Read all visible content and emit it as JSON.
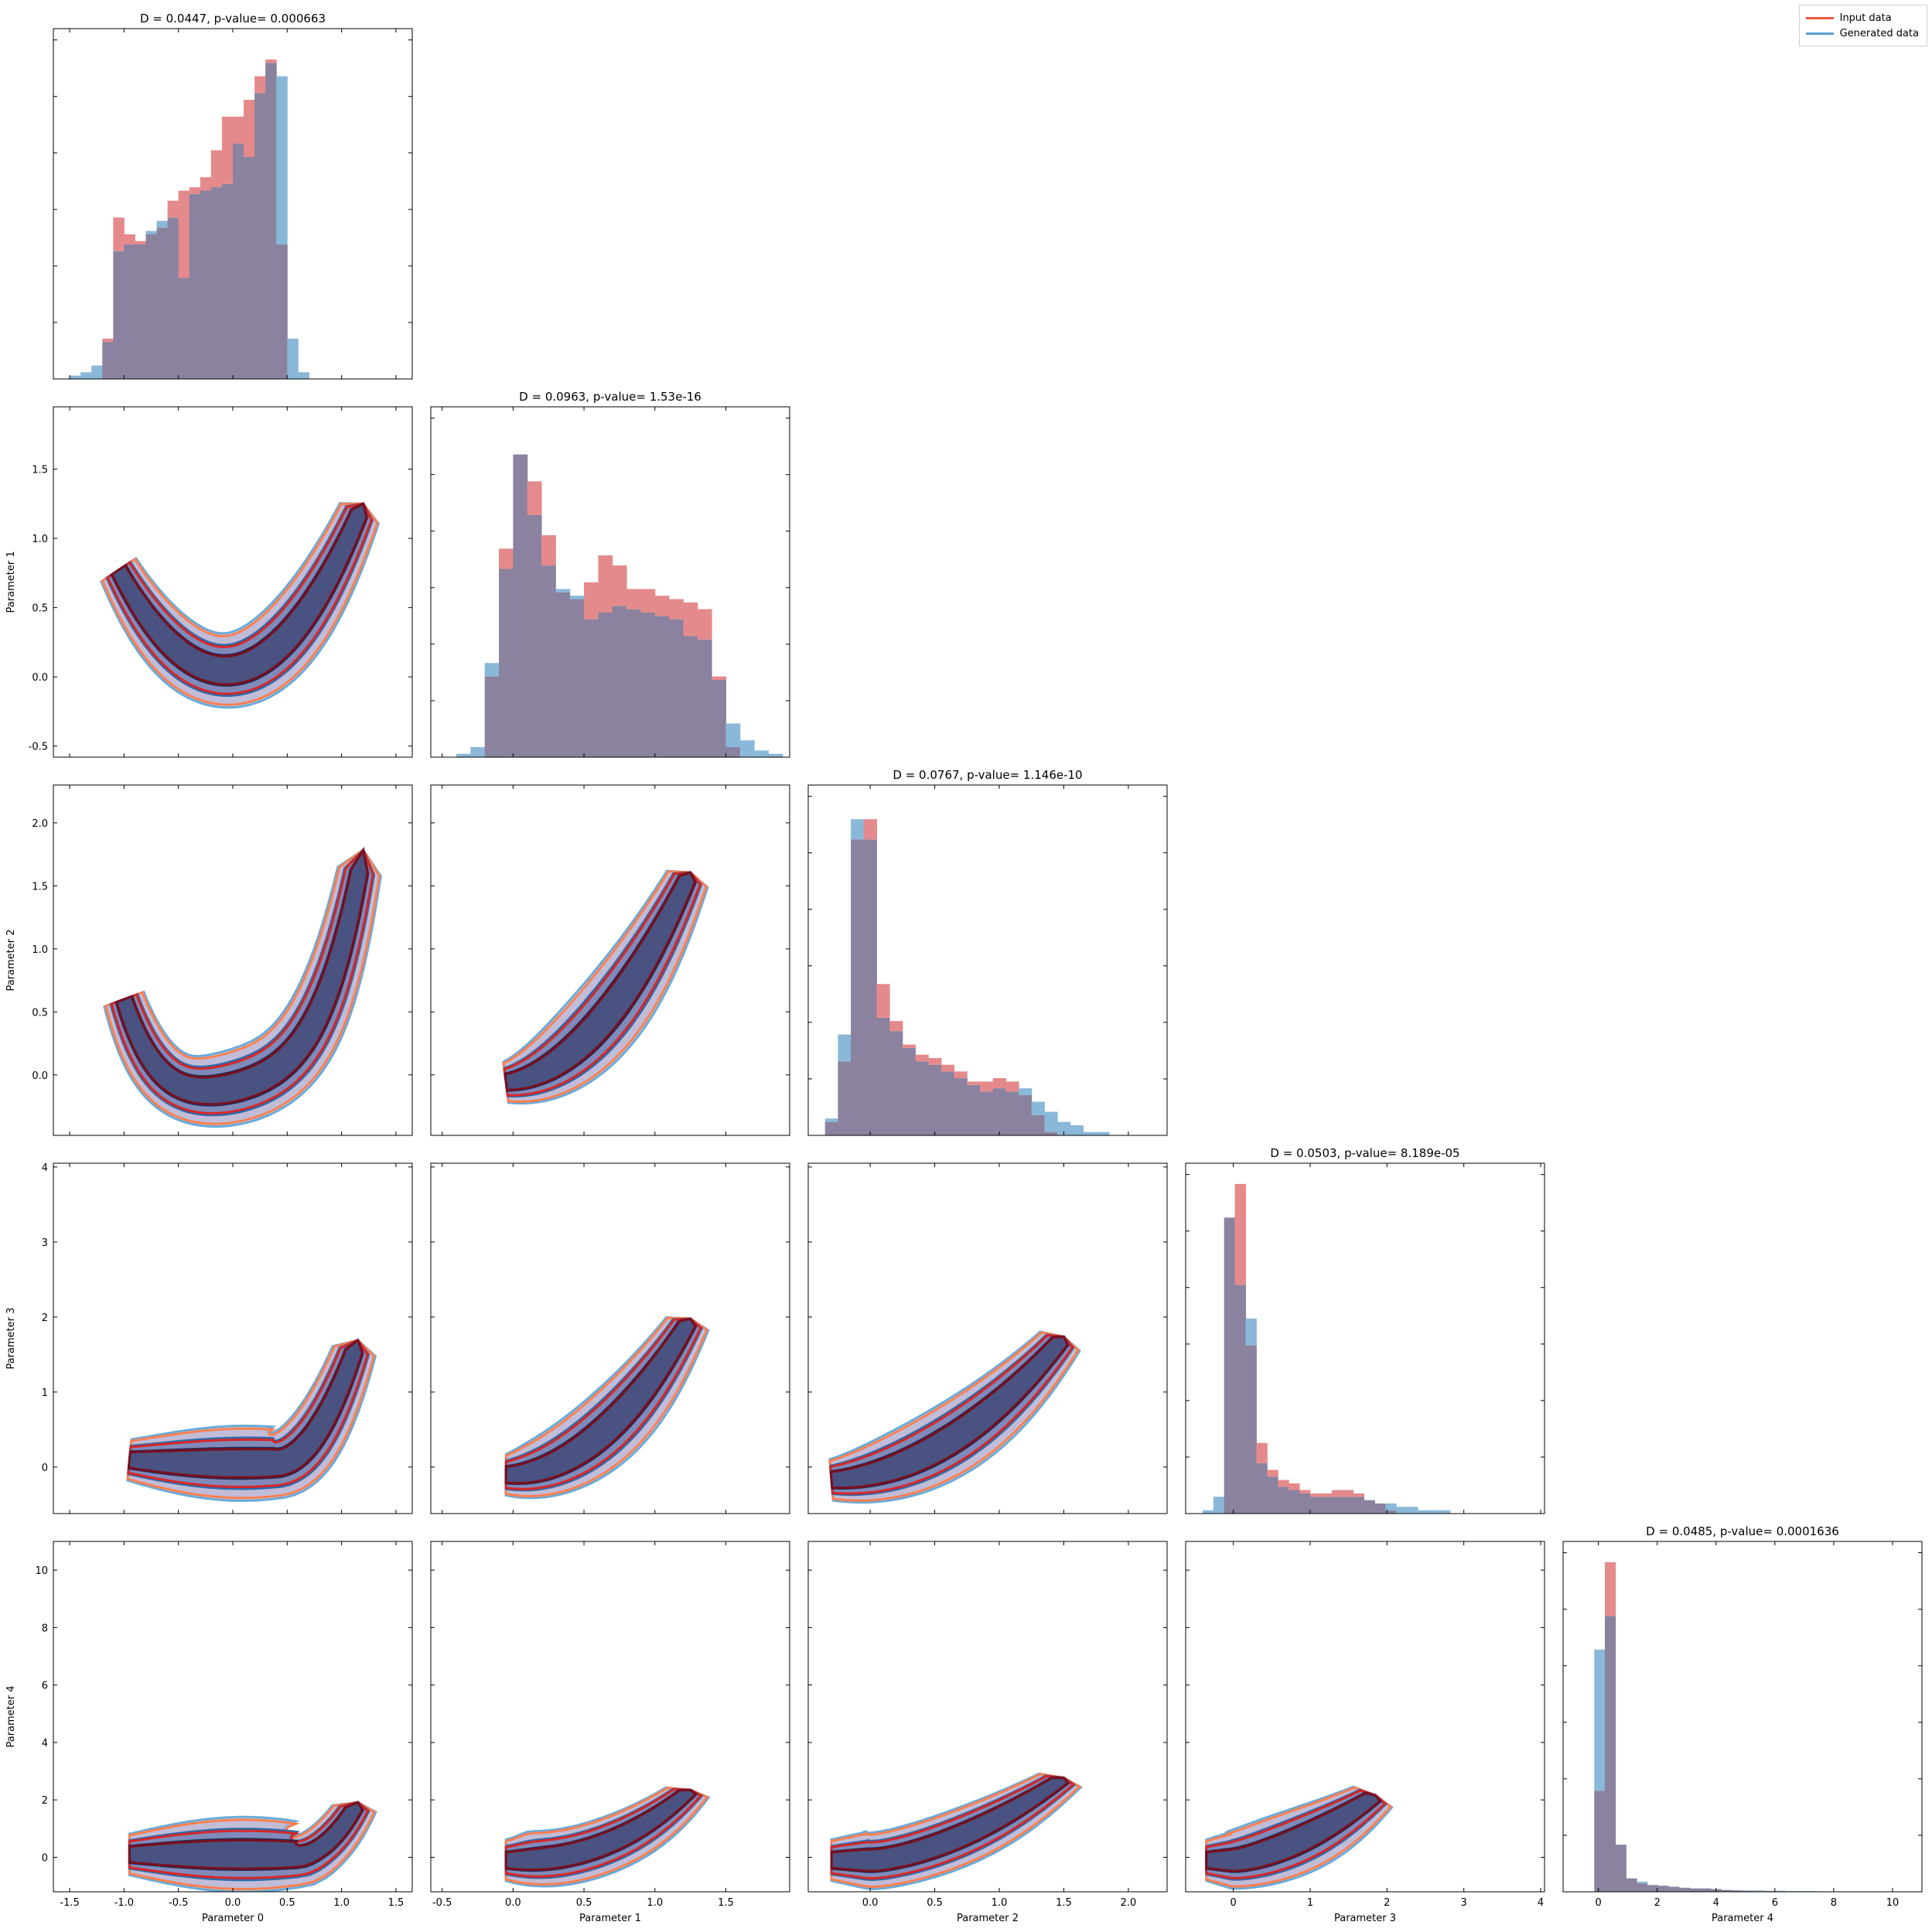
{
  "legend": {
    "input": {
      "label": "Input data",
      "color": "#ee5a3c"
    },
    "generated": {
      "label": "Generated data",
      "color": "#5a9fd4"
    }
  },
  "colors": {
    "input_hist": "#e58a8c",
    "generated_hist": "#8ab8d8",
    "overlap_hist": "#8a829e",
    "input_lines": [
      "#ff7f50",
      "#d62728",
      "#7a0f1e"
    ],
    "generated_fills": [
      "#b6d4ea",
      "#6fa1d0",
      "#3f5a92"
    ],
    "generated_lines": [
      "#6aaad8",
      "#2d6aa8",
      "#1a2c5e"
    ],
    "overlap_fills": [
      "#c6a8c6",
      "#8a76a6",
      "#4e4a70"
    ]
  },
  "chart_data": {
    "type": "corner",
    "parameters": [
      "Parameter 0",
      "Parameter 1",
      "Parameter 2",
      "Parameter 3",
      "Parameter 4"
    ],
    "ranges": [
      [
        -1.65,
        1.65
      ],
      [
        -0.58,
        1.95
      ],
      [
        -0.48,
        2.3
      ],
      [
        -0.62,
        4.05
      ],
      [
        -1.2,
        11.0
      ]
    ],
    "ticks": [
      [
        -1.5,
        -1.0,
        -0.5,
        0.0,
        0.5,
        1.0,
        1.5
      ],
      [
        -0.5,
        0.0,
        0.5,
        1.0,
        1.5
      ],
      [
        0.0,
        0.5,
        1.0,
        1.5,
        2.0
      ],
      [
        0,
        1,
        2,
        3,
        4
      ],
      [
        0,
        2,
        4,
        6,
        8,
        10
      ]
    ],
    "tick_labels": [
      [
        "-1.5",
        "-1.0",
        "-0.5",
        "0.0",
        "0.5",
        "1.0",
        "1.5"
      ],
      [
        "-0.5",
        "0.0",
        "0.5",
        "1.0",
        "1.5"
      ],
      [
        "0.0",
        "0.5",
        "1.0",
        "1.5",
        "2.0"
      ],
      [
        "0",
        "1",
        "2",
        "3",
        "4"
      ],
      [
        "0",
        "2",
        "4",
        "6",
        "8",
        "10"
      ]
    ],
    "diagonal": [
      {
        "title": "D = 0.0447, p-value= 0.000663",
        "bin_start": -1.5,
        "bin_width": 0.1,
        "input": [
          0,
          0,
          0,
          0.12,
          0.48,
          0.43,
          0.41,
          0.43,
          0.45,
          0.53,
          0.56,
          0.57,
          0.6,
          0.68,
          0.78,
          0.78,
          0.83,
          0.9,
          0.95,
          0.4,
          0,
          0,
          0,
          0,
          0,
          0,
          0,
          0,
          0,
          0,
          0
        ],
        "generated": [
          0.01,
          0.02,
          0.04,
          0.11,
          0.38,
          0.4,
          0.4,
          0.44,
          0.47,
          0.48,
          0.3,
          0.55,
          0.56,
          0.57,
          0.58,
          0.7,
          0.66,
          0.85,
          0.94,
          0.9,
          0.12,
          0.02,
          0,
          0,
          0,
          0,
          0,
          0,
          0,
          0,
          0
        ]
      },
      {
        "title": "D = 0.0963, p-value= 1.53e-16",
        "bin_start": -0.4,
        "bin_width": 0.1,
        "input": [
          0,
          0,
          0.24,
          0.62,
          0.9,
          0.82,
          0.66,
          0.49,
          0.47,
          0.52,
          0.6,
          0.57,
          0.5,
          0.5,
          0.48,
          0.47,
          0.46,
          0.44,
          0.24,
          0.03,
          0,
          0,
          0,
          0,
          0,
          0
        ],
        "generated": [
          0.01,
          0.03,
          0.28,
          0.56,
          0.9,
          0.72,
          0.57,
          0.5,
          0.48,
          0.41,
          0.43,
          0.45,
          0.44,
          0.43,
          0.42,
          0.41,
          0.36,
          0.35,
          0.23,
          0.1,
          0.05,
          0.02,
          0.01,
          0,
          0,
          0
        ]
      },
      {
        "title": "D = 0.0767, p-value= 1.146e-10",
        "bin_start": -0.35,
        "bin_width": 0.1,
        "input": [
          0.04,
          0.22,
          0.88,
          0.94,
          0.45,
          0.34,
          0.27,
          0.24,
          0.23,
          0.21,
          0.19,
          0.16,
          0.16,
          0.17,
          0.16,
          0.12,
          0.06,
          0.01,
          0,
          0,
          0,
          0,
          0,
          0,
          0
        ],
        "generated": [
          0.05,
          0.3,
          0.94,
          0.88,
          0.35,
          0.31,
          0.26,
          0.22,
          0.21,
          0.19,
          0.17,
          0.15,
          0.13,
          0.14,
          0.13,
          0.14,
          0.1,
          0.07,
          0.04,
          0.03,
          0.01,
          0.01,
          0,
          0,
          0
        ]
      },
      {
        "title": "D = 0.0503, p-value= 8.189e-05",
        "bin_start": -0.4,
        "bin_width": 0.14,
        "input": [
          0,
          0,
          0.88,
          0.98,
          0.5,
          0.21,
          0.13,
          0.1,
          0.09,
          0.07,
          0.06,
          0.06,
          0.07,
          0.07,
          0.06,
          0.04,
          0.03,
          0.01,
          0,
          0,
          0,
          0,
          0,
          0,
          0,
          0,
          0,
          0,
          0,
          0
        ],
        "generated": [
          0.01,
          0.05,
          0.88,
          0.68,
          0.58,
          0.15,
          0.11,
          0.08,
          0.07,
          0.06,
          0.05,
          0.05,
          0.05,
          0.05,
          0.05,
          0.04,
          0.03,
          0.03,
          0.02,
          0.02,
          0.01,
          0.01,
          0.01,
          0,
          0,
          0,
          0,
          0,
          0,
          0
        ]
      },
      {
        "title": "D = 0.0485, p-value= 0.0001636",
        "bin_start": -0.5,
        "bin_width": 0.36,
        "input": [
          0,
          0.3,
          0.98,
          0.14,
          0.04,
          0.025,
          0.02,
          0.018,
          0.015,
          0.012,
          0.01,
          0.01,
          0.008,
          0.005,
          0.004,
          0.003,
          0.002,
          0.002,
          0.001,
          0.001,
          0,
          0,
          0,
          0,
          0,
          0,
          0,
          0,
          0,
          0,
          0,
          0
        ],
        "generated": [
          0,
          0.72,
          0.82,
          0.14,
          0.04,
          0.03,
          0.02,
          0.018,
          0.015,
          0.012,
          0.01,
          0.01,
          0.008,
          0.006,
          0.005,
          0.004,
          0.004,
          0.003,
          0.003,
          0.002,
          0.002,
          0.002,
          0.001,
          0.001,
          0.001,
          0.001,
          0,
          0,
          0,
          0,
          0,
          0
        ]
      }
    ]
  }
}
